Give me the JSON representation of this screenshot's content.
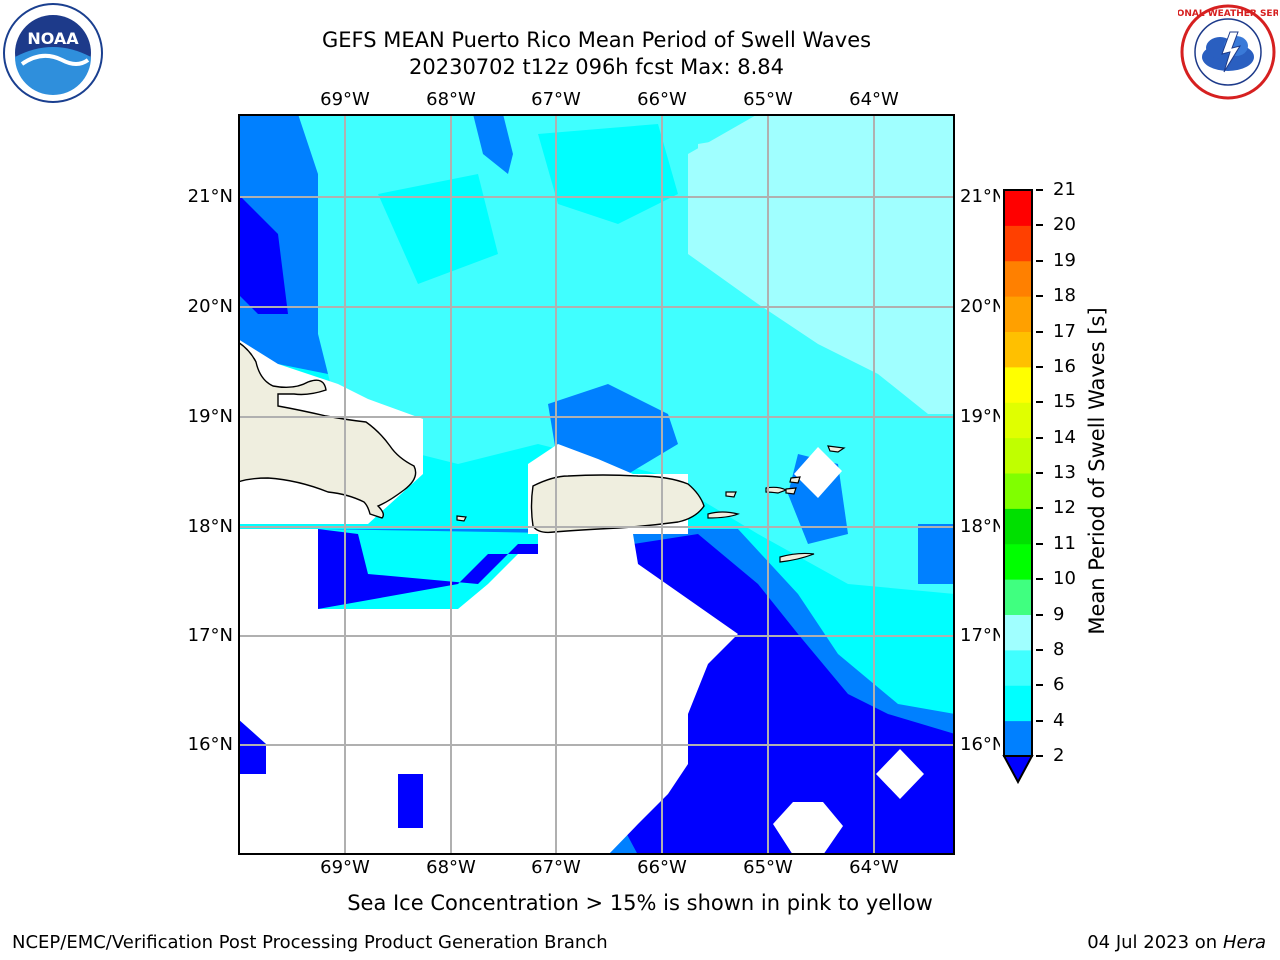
{
  "title": {
    "line1": "GEFS MEAN Puerto Rico Mean Period of Swell Waves",
    "line2": "20230702 t12z 096h fcst   Max: 8.84"
  },
  "logos": {
    "noaa": "NOAA",
    "nws": "NATIONAL WEATHER SERVICE"
  },
  "map": {
    "lon_ticks": [
      "69°W",
      "68°W",
      "67°W",
      "66°W",
      "65°W",
      "64°W"
    ],
    "lat_ticks": [
      "21°N",
      "20°N",
      "19°N",
      "18°N",
      "17°N",
      "16°N"
    ]
  },
  "colorbar": {
    "label": "Mean Period of Swell Waves [s]",
    "ticks": [
      "2",
      "4",
      "6",
      "8",
      "9",
      "10",
      "11",
      "12",
      "13",
      "14",
      "15",
      "16",
      "17",
      "18",
      "19",
      "20",
      "21"
    ],
    "colors": [
      "#0000ff",
      "#0080ff",
      "#00ffff",
      "#40ffff",
      "#a0ffff",
      "#40ff80",
      "#00ff00",
      "#00e000",
      "#80ff00",
      "#c0ff00",
      "#e0ff00",
      "#ffff00",
      "#ffc000",
      "#ffa000",
      "#ff8000",
      "#ff4000",
      "#ff0000"
    ]
  },
  "note": "Sea Ice Concentration > 15% is shown in pink to yellow",
  "footer": {
    "left": "NCEP/EMC/Verification Post Processing Product Generation Branch",
    "date": "04 Jul 2023 on ",
    "machine": "Hera"
  },
  "chart_data": {
    "type": "heatmap",
    "variable": "Mean Period of Swell Waves",
    "units": "s",
    "max": 8.84,
    "lon_range": [
      "70°W",
      "63.3°W"
    ],
    "lat_range": [
      "15°N",
      "21.7°N"
    ],
    "levels": [
      2,
      4,
      6,
      8,
      9,
      10,
      11,
      12,
      13,
      14,
      15,
      16,
      17,
      18,
      19,
      20,
      21
    ]
  }
}
